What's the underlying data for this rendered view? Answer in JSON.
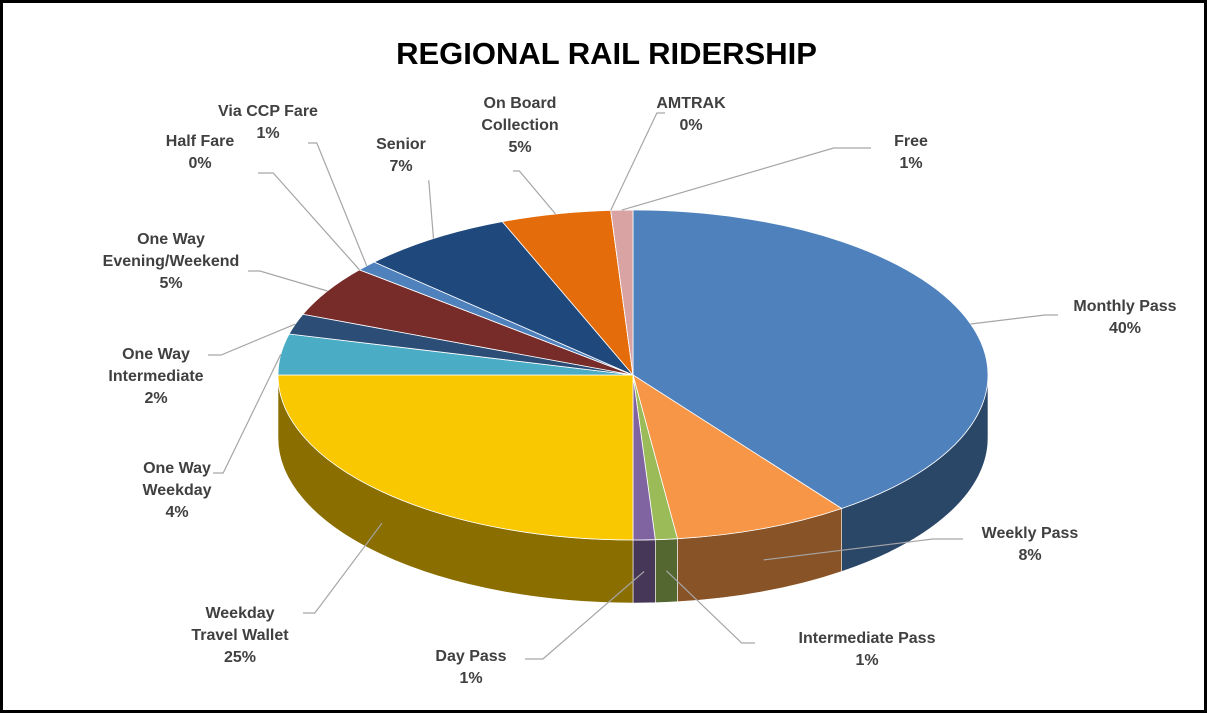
{
  "chart_data": {
    "type": "pie",
    "title": "REGIONAL RAIL RIDERSHIP",
    "categories": [
      "Monthly Pass",
      "Weekly Pass",
      "Intermediate Pass",
      "Day Pass",
      "Weekday Travel Wallet",
      "One Way Weekday",
      "One Way Intermediate",
      "One Way Evening/Weekend",
      "Half Fare",
      "Via CCP Fare",
      "Senior",
      "On Board Collection",
      "AMTRAK",
      "Free"
    ],
    "values": [
      40,
      8,
      1,
      1,
      25,
      4,
      2,
      5,
      0,
      1,
      7,
      5,
      0,
      1
    ],
    "value_labels": [
      "40%",
      "8%",
      "1%",
      "1%",
      "25%",
      "4%",
      "2%",
      "5%",
      "0%",
      "1%",
      "7%",
      "5%",
      "0%",
      "1%"
    ],
    "colors": [
      "#4f81bd",
      "#f79646",
      "#9bbb59",
      "#8064a2",
      "#fac800",
      "#4bacc6",
      "#2c4d75",
      "#772c2a",
      "#9bbb59",
      "#4f81bd",
      "#1f497d",
      "#e46c0a",
      "#a5c5e8",
      "#d9a3a3"
    ]
  }
}
